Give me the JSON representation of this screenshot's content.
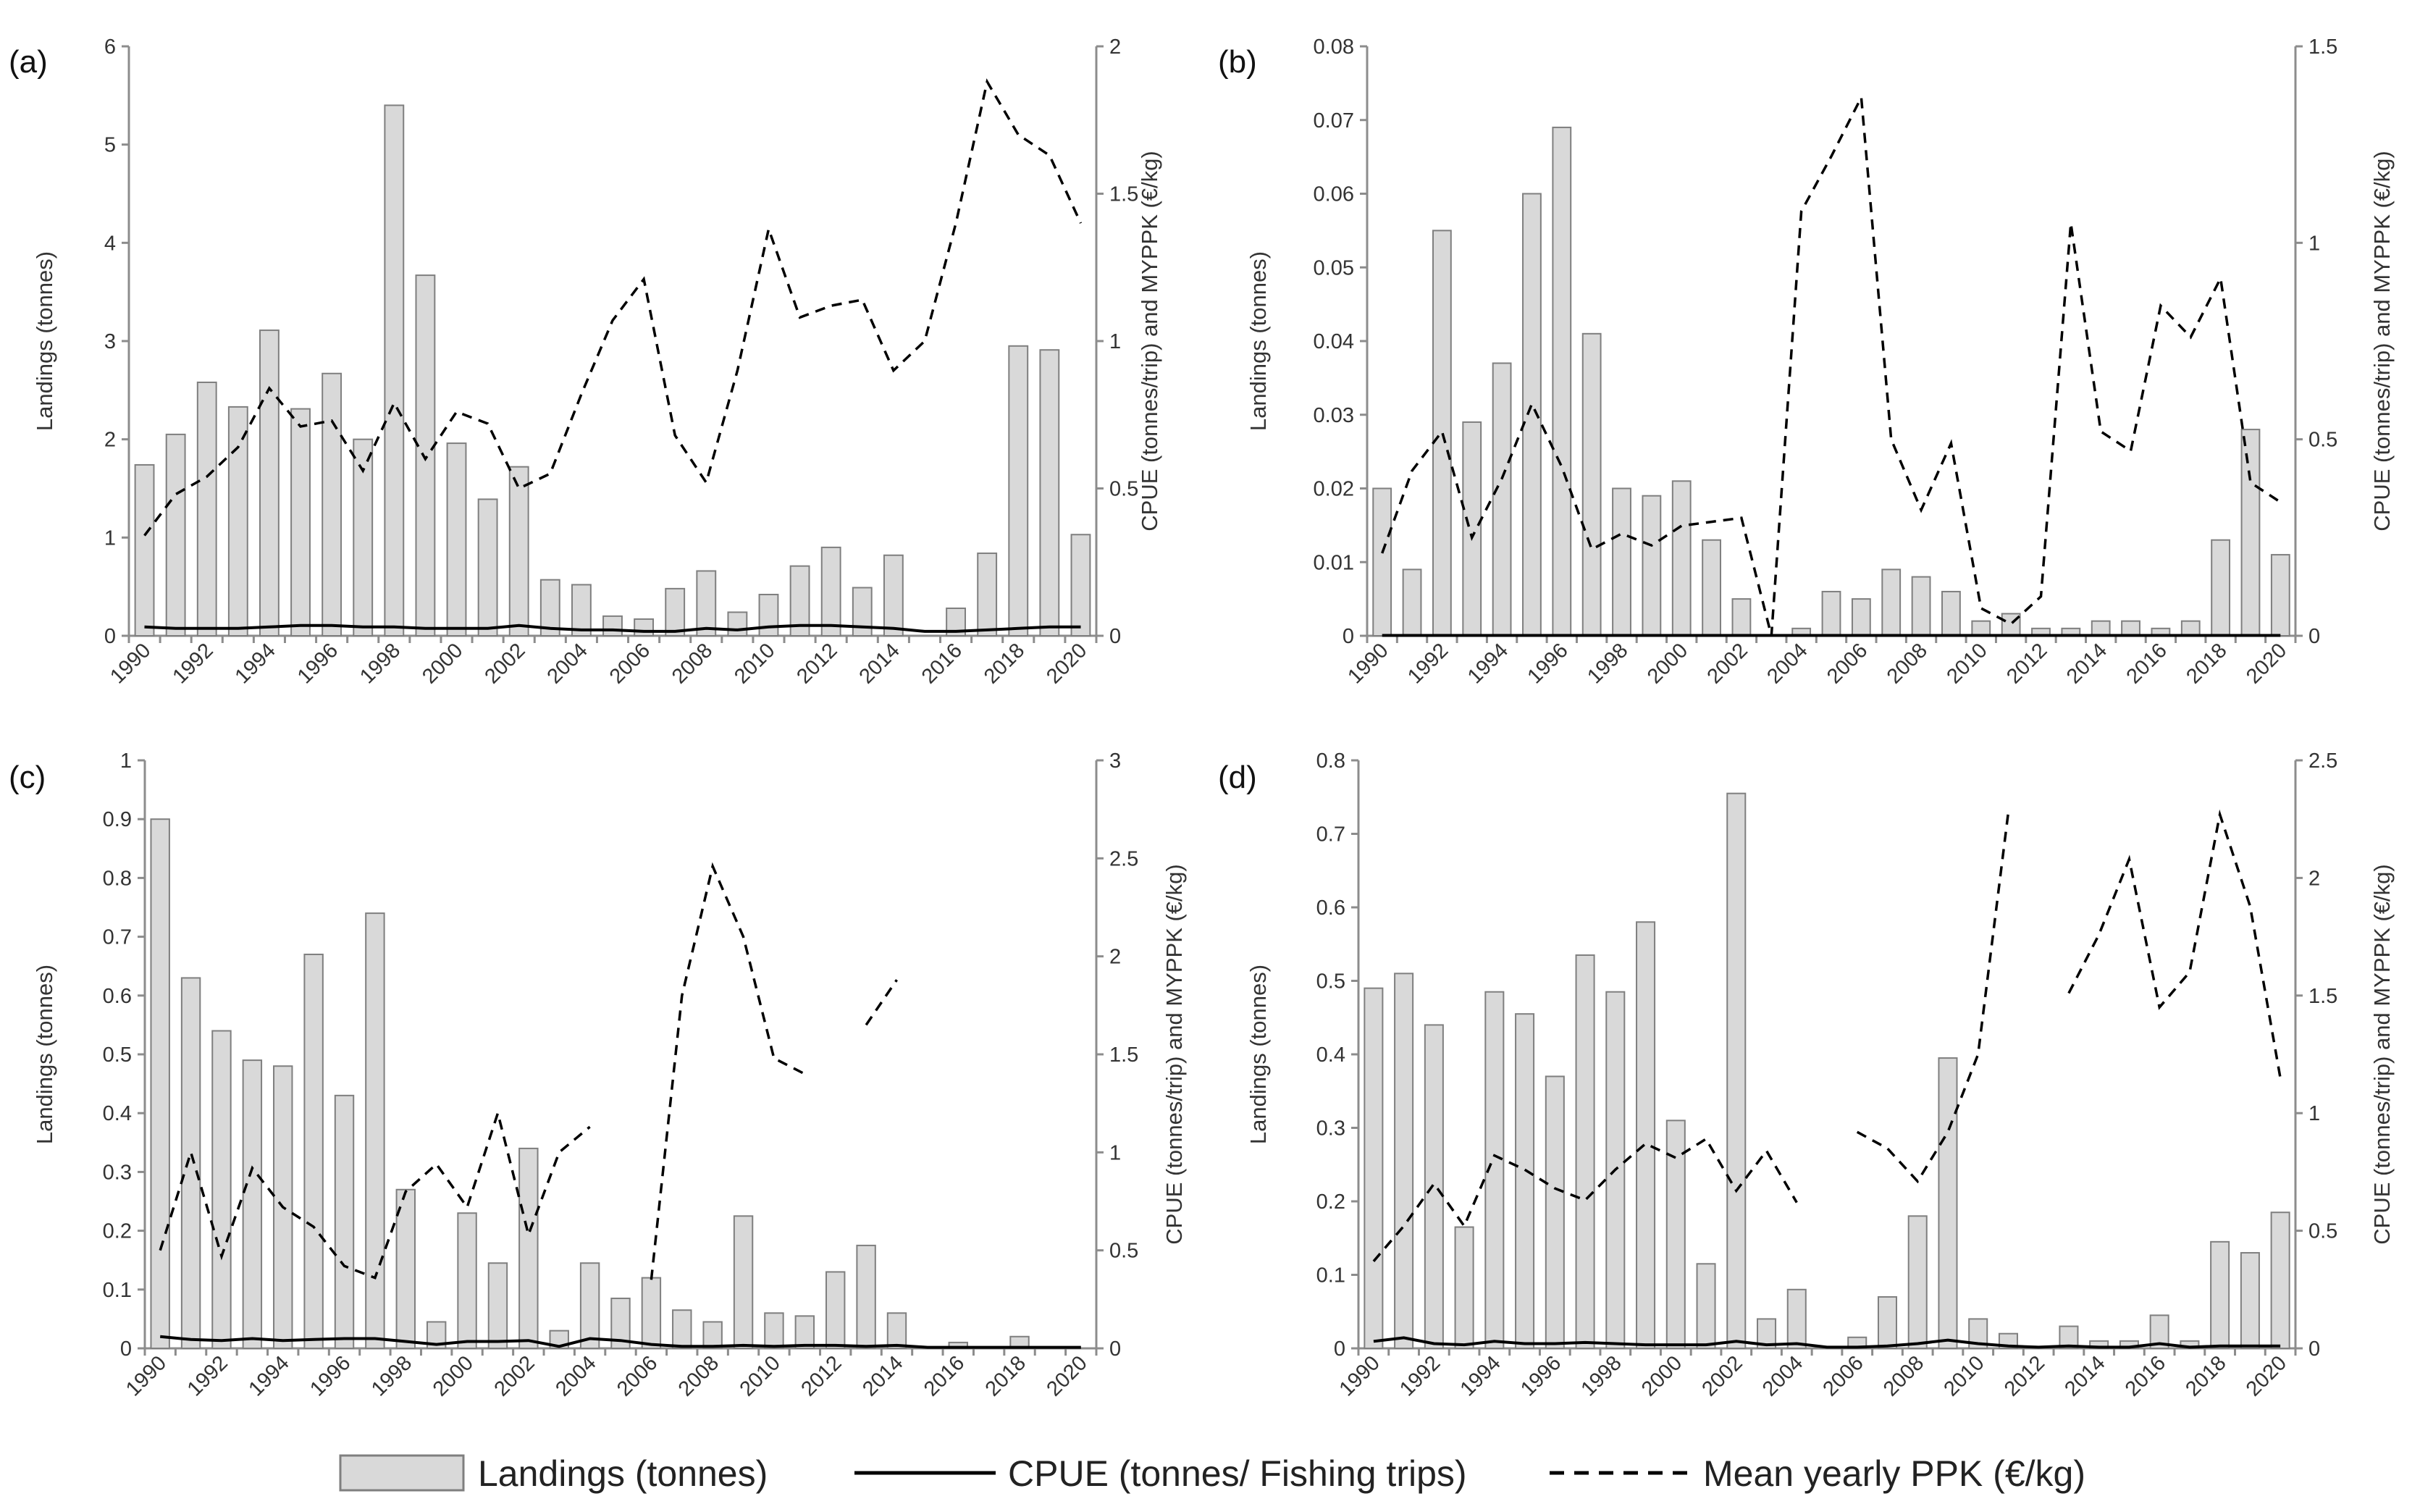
{
  "figure": {
    "legend": {
      "landings": "Landings (tonnes)",
      "cpue": "CPUE (tonnes/ Fishing trips)",
      "ppk": "Mean yearly PPK (€/kg)"
    }
  },
  "colors": {
    "bar_fill": "#d9d9d9",
    "bar_stroke": "#7f7f7f",
    "line": "#000000",
    "axis": "#8c8c8c"
  },
  "chart_data": [
    {
      "type": "bar",
      "panel_label": "(a)",
      "x": [
        1990,
        1991,
        1992,
        1993,
        1994,
        1995,
        1996,
        1997,
        1998,
        1999,
        2000,
        2001,
        2002,
        2003,
        2004,
        2005,
        2006,
        2007,
        2008,
        2009,
        2010,
        2011,
        2012,
        2013,
        2014,
        2015,
        2016,
        2017,
        2018,
        2019,
        2020
      ],
      "x_tick_labels": [
        "1990",
        "1992",
        "1994",
        "1996",
        "1998",
        "2000",
        "2002",
        "2004",
        "2006",
        "2008",
        "2010",
        "2012",
        "2014",
        "2016",
        "2018",
        "2020"
      ],
      "ylabel": "Landings (tonnes)",
      "y2label": "CPUE (tonnes/trip) and MYPPK (€/kg)",
      "ylim": [
        0,
        6
      ],
      "yticks": [
        "0",
        "1",
        "2",
        "3",
        "4",
        "5",
        "6"
      ],
      "y2lim": [
        0,
        2
      ],
      "y2ticks": [
        "0",
        "0.5",
        "1",
        "1.5",
        "2"
      ],
      "series": [
        {
          "name": "Landings (tonnes)",
          "axis": "left",
          "kind": "bar",
          "values": [
            1.74,
            2.05,
            2.58,
            2.33,
            3.11,
            2.31,
            2.67,
            2.0,
            5.4,
            3.67,
            1.96,
            1.39,
            1.72,
            0.57,
            0.52,
            0.2,
            0.17,
            0.48,
            0.66,
            0.24,
            0.42,
            0.71,
            0.9,
            0.49,
            0.82,
            0.0,
            0.28,
            0.84,
            2.95,
            2.91,
            1.03
          ]
        },
        {
          "name": "CPUE (tonnes/ Fishing trips)",
          "axis": "right",
          "kind": "line",
          "values": [
            0.03,
            0.025,
            0.025,
            0.025,
            0.03,
            0.035,
            0.035,
            0.03,
            0.03,
            0.025,
            0.025,
            0.025,
            0.035,
            0.025,
            0.02,
            0.02,
            0.015,
            0.015,
            0.025,
            0.02,
            0.03,
            0.035,
            0.035,
            0.03,
            0.025,
            0.015,
            0.015,
            0.02,
            0.025,
            0.03,
            0.03
          ]
        },
        {
          "name": "Mean yearly PPK (€/kg)",
          "axis": "right",
          "kind": "dashed-line",
          "values": [
            0.34,
            0.48,
            0.54,
            0.64,
            0.84,
            0.71,
            0.73,
            0.56,
            0.79,
            0.6,
            0.76,
            0.72,
            0.5,
            0.55,
            0.82,
            1.07,
            1.21,
            0.68,
            0.52,
            0.9,
            1.38,
            1.08,
            1.12,
            1.14,
            0.9,
            1.0,
            1.4,
            1.88,
            1.7,
            1.63,
            1.4
          ]
        }
      ]
    },
    {
      "type": "bar",
      "panel_label": "(b)",
      "x": [
        1990,
        1991,
        1992,
        1993,
        1994,
        1995,
        1996,
        1997,
        1998,
        1999,
        2000,
        2001,
        2002,
        2003,
        2004,
        2005,
        2006,
        2007,
        2008,
        2009,
        2010,
        2011,
        2012,
        2013,
        2014,
        2015,
        2016,
        2017,
        2018,
        2019,
        2020
      ],
      "x_tick_labels": [
        "1990",
        "1992",
        "1994",
        "1996",
        "1998",
        "2000",
        "2002",
        "2004",
        "2006",
        "2008",
        "2010",
        "2012",
        "2014",
        "2016",
        "2018",
        "2020"
      ],
      "ylabel": "Landings (tonnes)",
      "y2label": "CPUE (tonnes/trip) and MYPPK (€/kg)",
      "ylim": [
        0,
        0.08
      ],
      "yticks": [
        "0",
        "0.01",
        "0.02",
        "0.03",
        "0.04",
        "0.05",
        "0.06",
        "0.07",
        "0.08"
      ],
      "y2lim": [
        0,
        1.5
      ],
      "y2ticks": [
        "0",
        "0.5",
        "1",
        "1.5"
      ],
      "series": [
        {
          "name": "Landings (tonnes)",
          "axis": "left",
          "kind": "bar",
          "values": [
            0.02,
            0.009,
            0.055,
            0.029,
            0.037,
            0.06,
            0.069,
            0.041,
            0.02,
            0.019,
            0.021,
            0.013,
            0.005,
            0.0,
            0.001,
            0.006,
            0.005,
            0.009,
            0.008,
            0.006,
            0.002,
            0.003,
            0.001,
            0.001,
            0.002,
            0.002,
            0.001,
            0.002,
            0.013,
            0.028,
            0.011
          ]
        },
        {
          "name": "CPUE (tonnes/ Fishing trips)",
          "axis": "right",
          "kind": "line",
          "values": [
            0.001,
            0.001,
            0.001,
            0.001,
            0.001,
            0.001,
            0.001,
            0.001,
            0.001,
            0.001,
            0.001,
            0.001,
            0.001,
            0.001,
            0.001,
            0.001,
            0.001,
            0.001,
            0.001,
            0.001,
            0.001,
            0.001,
            0.001,
            0.001,
            0.001,
            0.001,
            0.001,
            0.001,
            0.001,
            0.001,
            0.001
          ]
        },
        {
          "name": "Mean yearly PPK (€/kg)",
          "axis": "right",
          "kind": "dashed-line",
          "values": [
            0.21,
            0.42,
            0.52,
            0.25,
            0.4,
            0.59,
            0.43,
            0.22,
            0.26,
            0.23,
            0.28,
            0.29,
            0.3,
            0.0,
            1.08,
            1.22,
            1.37,
            0.5,
            0.32,
            0.49,
            0.07,
            0.03,
            0.1,
            1.05,
            0.52,
            0.47,
            0.84,
            0.76,
            0.91,
            0.39,
            0.34
          ]
        }
      ]
    },
    {
      "type": "bar",
      "panel_label": "(c)",
      "x": [
        1990,
        1991,
        1992,
        1993,
        1994,
        1995,
        1996,
        1997,
        1998,
        1999,
        2000,
        2001,
        2002,
        2003,
        2004,
        2005,
        2006,
        2007,
        2008,
        2009,
        2010,
        2011,
        2012,
        2013,
        2014,
        2015,
        2016,
        2017,
        2018,
        2019,
        2020
      ],
      "x_tick_labels": [
        "1990",
        "1992",
        "1994",
        "1996",
        "1998",
        "2000",
        "2002",
        "2004",
        "2006",
        "2008",
        "2010",
        "2012",
        "2014",
        "2016",
        "2018",
        "2020"
      ],
      "ylabel": "Landings (tonnes)",
      "y2label": "CPUE (tonnes/trip) and MYPPK (€/kg)",
      "ylim": [
        0,
        1
      ],
      "yticks": [
        "0",
        "0.1",
        "0.2",
        "0.3",
        "0.4",
        "0.5",
        "0.6",
        "0.7",
        "0.8",
        "0.9",
        "1"
      ],
      "y2lim": [
        0,
        3
      ],
      "y2ticks": [
        "0",
        "0.5",
        "1",
        "1.5",
        "2",
        "2.5",
        "3"
      ],
      "series": [
        {
          "name": "Landings (tonnes)",
          "axis": "left",
          "kind": "bar",
          "values": [
            0.9,
            0.63,
            0.54,
            0.49,
            0.48,
            0.67,
            0.43,
            0.74,
            0.27,
            0.045,
            0.23,
            0.145,
            0.34,
            0.03,
            0.145,
            0.085,
            0.12,
            0.065,
            0.045,
            0.225,
            0.06,
            0.055,
            0.13,
            0.175,
            0.06,
            0.0,
            0.01,
            0.0,
            0.02,
            0.0,
            0.0
          ]
        },
        {
          "name": "CPUE (tonnes/ Fishing trips)",
          "axis": "right",
          "kind": "line",
          "values": [
            0.06,
            0.045,
            0.04,
            0.05,
            0.04,
            0.045,
            0.05,
            0.05,
            0.035,
            0.02,
            0.035,
            0.035,
            0.04,
            0.01,
            0.05,
            0.04,
            0.02,
            0.01,
            0.01,
            0.015,
            0.01,
            0.015,
            0.015,
            0.01,
            0.015,
            0.005,
            0.005,
            0.005,
            0.005,
            0.005,
            0.005
          ]
        },
        {
          "name": "Mean yearly PPK (€/kg)",
          "axis": "right",
          "kind": "dashed-line",
          "values": [
            0.5,
            1.0,
            0.47,
            0.92,
            0.72,
            0.62,
            0.42,
            0.36,
            0.8,
            0.94,
            0.72,
            1.2,
            0.58,
            1.0,
            1.13,
            null,
            0.35,
            1.8,
            2.46,
            2.1,
            1.48,
            1.4,
            null,
            1.65,
            1.88,
            null,
            null,
            null,
            null,
            null,
            null
          ]
        }
      ]
    },
    {
      "type": "bar",
      "panel_label": "(d)",
      "x": [
        1990,
        1991,
        1992,
        1993,
        1994,
        1995,
        1996,
        1997,
        1998,
        1999,
        2000,
        2001,
        2002,
        2003,
        2004,
        2005,
        2006,
        2007,
        2008,
        2009,
        2010,
        2011,
        2012,
        2013,
        2014,
        2015,
        2016,
        2017,
        2018,
        2019,
        2020
      ],
      "x_tick_labels": [
        "1990",
        "1992",
        "1994",
        "1996",
        "1998",
        "2000",
        "2002",
        "2004",
        "2006",
        "2008",
        "2010",
        "2012",
        "2014",
        "2016",
        "2018",
        "2020"
      ],
      "ylabel": "Landings (tonnes)",
      "y2label": "CPUE (tonnes/trip) and MYPPK (€/kg)",
      "ylim": [
        0,
        0.8
      ],
      "yticks": [
        "0",
        "0.1",
        "0.2",
        "0.3",
        "0.4",
        "0.5",
        "0.6",
        "0.7",
        "0.8"
      ],
      "y2lim": [
        0,
        2.5
      ],
      "y2ticks": [
        "0",
        "0.5",
        "1",
        "1.5",
        "2",
        "2.5"
      ],
      "series": [
        {
          "name": "Landings (tonnes)",
          "axis": "left",
          "kind": "bar",
          "values": [
            0.49,
            0.51,
            0.44,
            0.165,
            0.485,
            0.455,
            0.37,
            0.535,
            0.485,
            0.58,
            0.31,
            0.115,
            0.755,
            0.04,
            0.08,
            0.0,
            0.015,
            0.07,
            0.18,
            0.395,
            0.04,
            0.02,
            0.0,
            0.03,
            0.01,
            0.01,
            0.045,
            0.01,
            0.145,
            0.13,
            0.185
          ]
        },
        {
          "name": "CPUE (tonnes/ Fishing trips)",
          "axis": "right",
          "kind": "line",
          "values": [
            0.03,
            0.045,
            0.02,
            0.015,
            0.03,
            0.02,
            0.02,
            0.025,
            0.02,
            0.015,
            0.015,
            0.015,
            0.03,
            0.015,
            0.02,
            0.005,
            0.005,
            0.01,
            0.02,
            0.035,
            0.02,
            0.01,
            0.005,
            0.01,
            0.005,
            0.005,
            0.02,
            0.005,
            0.01,
            0.01,
            0.01
          ]
        },
        {
          "name": "Mean yearly PPK (€/kg)",
          "axis": "right",
          "kind": "dashed-line",
          "values": [
            0.37,
            0.52,
            0.7,
            0.52,
            0.82,
            0.76,
            0.68,
            0.63,
            0.76,
            0.87,
            0.81,
            0.89,
            0.67,
            0.84,
            0.62,
            null,
            0.92,
            0.85,
            0.71,
            0.92,
            1.25,
            2.28,
            null,
            1.51,
            1.76,
            2.08,
            1.45,
            1.6,
            2.27,
            1.88,
            1.15
          ]
        }
      ]
    }
  ]
}
